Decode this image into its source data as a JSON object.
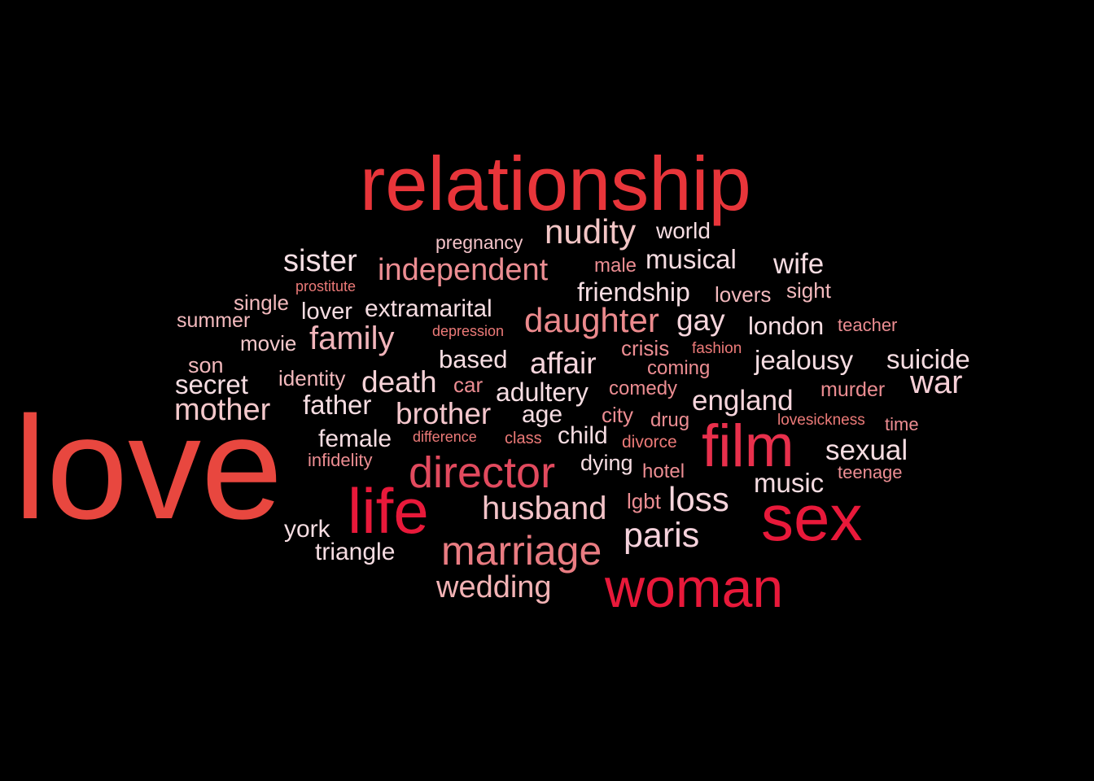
{
  "words": [
    {
      "text": "love",
      "color": "#e8473f"
    },
    {
      "text": "relationship",
      "color": "#e8353a"
    },
    {
      "text": "sex",
      "color": "#e8193a"
    },
    {
      "text": "film",
      "color": "#e8304c"
    },
    {
      "text": "woman",
      "color": "#e8193a"
    },
    {
      "text": "life",
      "color": "#e8193a"
    },
    {
      "text": "director",
      "color": "#e24a5e"
    },
    {
      "text": "marriage",
      "color": "#e97c82"
    },
    {
      "text": "nudity",
      "color": "#f3c6c6"
    },
    {
      "text": "independent",
      "color": "#ec8d92"
    },
    {
      "text": "daughter",
      "color": "#ec8a8d"
    },
    {
      "text": "family",
      "color": "#f1b5bb"
    },
    {
      "text": "sister",
      "color": "#f6dfe4"
    },
    {
      "text": "paris",
      "color": "#f6d2dc"
    },
    {
      "text": "husband",
      "color": "#f3c3c8"
    },
    {
      "text": "loss",
      "color": "#f6d5dc"
    },
    {
      "text": "wedding",
      "color": "#f2b3b5"
    },
    {
      "text": "mother",
      "color": "#f4c8cb"
    },
    {
      "text": "affair",
      "color": "#f6d5dc"
    },
    {
      "text": "death",
      "color": "#f6d3d8"
    },
    {
      "text": "brother",
      "color": "#f5c7cd"
    },
    {
      "text": "england",
      "color": "#f6d5dc"
    },
    {
      "text": "sexual",
      "color": "#f6dde2"
    },
    {
      "text": "war",
      "color": "#f6d0d7"
    },
    {
      "text": "musical",
      "color": "#f6dde2"
    },
    {
      "text": "wife",
      "color": "#f6dde2"
    },
    {
      "text": "gay",
      "color": "#f6d5dc"
    },
    {
      "text": "jealousy",
      "color": "#f6dde2"
    },
    {
      "text": "suicide",
      "color": "#f6dde2"
    },
    {
      "text": "friendship",
      "color": "#f6dde2"
    },
    {
      "text": "father",
      "color": "#f6dde2"
    },
    {
      "text": "secret",
      "color": "#f6dde2"
    },
    {
      "text": "adultery",
      "color": "#f6dde2"
    },
    {
      "text": "london",
      "color": "#f6dde2"
    },
    {
      "text": "music",
      "color": "#f6dde2"
    },
    {
      "text": "based",
      "color": "#f6dde2"
    },
    {
      "text": "extramarital",
      "color": "#f6dde2"
    },
    {
      "text": "female",
      "color": "#f6dde2"
    },
    {
      "text": "triangle",
      "color": "#f6dde2"
    },
    {
      "text": "child",
      "color": "#f6dde2"
    },
    {
      "text": "age",
      "color": "#f6dde2"
    },
    {
      "text": "lover",
      "color": "#f6dde2"
    },
    {
      "text": "movie",
      "color": "#f4c8cb"
    },
    {
      "text": "son",
      "color": "#f3b9bd"
    },
    {
      "text": "york",
      "color": "#f6dde2"
    },
    {
      "text": "dying",
      "color": "#f6dde2"
    },
    {
      "text": "pregnancy",
      "color": "#f3c3c8"
    },
    {
      "text": "world",
      "color": "#f6dde2"
    },
    {
      "text": "male",
      "color": "#ec8d92"
    },
    {
      "text": "lovers",
      "color": "#f3b9bd"
    },
    {
      "text": "sight",
      "color": "#f3b9bd"
    },
    {
      "text": "single",
      "color": "#f3b9bd"
    },
    {
      "text": "summer",
      "color": "#f3b9bd"
    },
    {
      "text": "identity",
      "color": "#f3b9bd"
    },
    {
      "text": "crisis",
      "color": "#ec8d92"
    },
    {
      "text": "coming",
      "color": "#ec8d92"
    },
    {
      "text": "comedy",
      "color": "#ec8d92"
    },
    {
      "text": "city",
      "color": "#ec8d92"
    },
    {
      "text": "drug",
      "color": "#ec8d92"
    },
    {
      "text": "car",
      "color": "#ec8d92"
    },
    {
      "text": "hotel",
      "color": "#ec8d92"
    },
    {
      "text": "lgbt",
      "color": "#ec8d92"
    },
    {
      "text": "murder",
      "color": "#ec8d92"
    },
    {
      "text": "teacher",
      "color": "#ec8d92"
    },
    {
      "text": "time",
      "color": "#ec8d92"
    },
    {
      "text": "teenage",
      "color": "#ec8d92"
    },
    {
      "text": "infidelity",
      "color": "#ec8d92"
    },
    {
      "text": "prostitute",
      "color": "#ec7a78"
    },
    {
      "text": "depression",
      "color": "#ec7a78"
    },
    {
      "text": "fashion",
      "color": "#ec7a78"
    },
    {
      "text": "lovesickness",
      "color": "#ec7a78"
    },
    {
      "text": "difference",
      "color": "#ec7a78"
    },
    {
      "text": "class",
      "color": "#ec7a78"
    },
    {
      "text": "divorce",
      "color": "#ec7a78"
    }
  ]
}
